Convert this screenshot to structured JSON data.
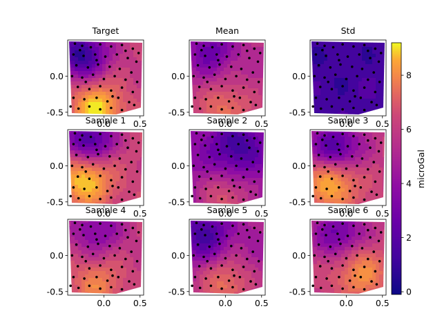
{
  "chart_data": {
    "type": "contour-grid",
    "colormap": "plasma",
    "colorbar": {
      "label": "microGal",
      "range": [
        -0.1,
        9.2
      ],
      "ticks": [
        0,
        2,
        4,
        6,
        8
      ]
    },
    "xlim": [
      -0.5,
      0.55
    ],
    "ylim": [
      -0.55,
      0.5
    ],
    "xticks": [
      0.0,
      0.5
    ],
    "yticks": [
      0.0,
      -0.5
    ],
    "points_marker": "black dots",
    "panels": [
      {
        "title": "Target",
        "field": {
          "low_center": [
            -0.3,
            0.3
          ],
          "high_center": [
            -0.1,
            -0.45
          ],
          "low": 0.5,
          "high": 9.0
        }
      },
      {
        "title": "Mean",
        "field": {
          "low_center": [
            -0.2,
            0.35
          ],
          "high_center": [
            0.0,
            -0.45
          ],
          "low": 2.0,
          "high": 6.5
        }
      },
      {
        "title": "Std",
        "field": {
          "low_center": [
            0.0,
            0.0
          ],
          "high_center": [
            0.1,
            -0.1
          ],
          "low": 0.6,
          "high": 1.4
        }
      },
      {
        "title": "Sample 1",
        "field": {
          "low_center": [
            -0.2,
            0.35
          ],
          "high_center": [
            -0.25,
            -0.2
          ],
          "low": 1.0,
          "high": 9.0
        }
      },
      {
        "title": "Sample 2",
        "field": {
          "low_center": [
            0.15,
            0.25
          ],
          "high_center": [
            0.0,
            -0.45
          ],
          "low": 0.8,
          "high": 5.5
        }
      },
      {
        "title": "Sample 3",
        "field": {
          "low_center": [
            -0.15,
            0.25
          ],
          "high_center": [
            -0.2,
            -0.25
          ],
          "low": 1.0,
          "high": 8.5
        }
      },
      {
        "title": "Sample 4",
        "field": {
          "low_center": [
            -0.1,
            0.35
          ],
          "high_center": [
            -0.1,
            -0.4
          ],
          "low": 2.5,
          "high": 7.0
        }
      },
      {
        "title": "Sample 5",
        "field": {
          "low_center": [
            -0.3,
            0.3
          ],
          "high_center": [
            0.0,
            -0.4
          ],
          "low": 1.0,
          "high": 6.5
        }
      },
      {
        "title": "Sample 6",
        "field": {
          "low_center": [
            -0.1,
            0.3
          ],
          "high_center": [
            0.2,
            -0.25
          ],
          "low": 2.0,
          "high": 7.5
        }
      }
    ],
    "points": [
      [
        -0.4,
        0.45
      ],
      [
        -0.3,
        0.42
      ],
      [
        -0.18,
        0.4
      ],
      [
        -0.05,
        0.44
      ],
      [
        0.1,
        0.41
      ],
      [
        0.25,
        0.43
      ],
      [
        0.4,
        0.38
      ],
      [
        -0.42,
        0.3
      ],
      [
        -0.28,
        0.28
      ],
      [
        -0.12,
        0.3
      ],
      [
        0.02,
        0.27
      ],
      [
        0.18,
        0.3
      ],
      [
        0.33,
        0.25
      ],
      [
        0.45,
        0.2
      ],
      [
        -0.38,
        0.15
      ],
      [
        -0.22,
        0.12
      ],
      [
        -0.08,
        0.16
      ],
      [
        0.08,
        0.13
      ],
      [
        0.22,
        0.1
      ],
      [
        0.38,
        0.05
      ],
      [
        -0.44,
        0.0
      ],
      [
        -0.3,
        -0.02
      ],
      [
        -0.15,
        0.02
      ],
      [
        0.0,
        -0.04
      ],
      [
        0.15,
        0.0
      ],
      [
        0.3,
        -0.05
      ],
      [
        0.46,
        -0.08
      ],
      [
        -0.36,
        -0.15
      ],
      [
        -0.2,
        -0.18
      ],
      [
        -0.05,
        -0.14
      ],
      [
        0.1,
        -0.2
      ],
      [
        0.25,
        -0.16
      ],
      [
        0.4,
        -0.22
      ],
      [
        -0.42,
        -0.3
      ],
      [
        -0.27,
        -0.32
      ],
      [
        -0.1,
        -0.3
      ],
      [
        0.05,
        -0.35
      ],
      [
        0.2,
        -0.3
      ],
      [
        0.35,
        -0.36
      ],
      [
        -0.35,
        -0.45
      ],
      [
        -0.2,
        -0.42
      ],
      [
        -0.05,
        -0.46
      ],
      [
        0.1,
        -0.44
      ],
      [
        0.25,
        -0.47
      ],
      [
        0.42,
        -0.4
      ],
      [
        -0.33,
        0.36
      ],
      [
        -0.1,
        0.22
      ],
      [
        0.3,
        0.35
      ],
      [
        -0.25,
        -0.08
      ],
      [
        0.12,
        -0.28
      ],
      [
        0.48,
        0.32
      ],
      [
        -0.46,
        -0.42
      ]
    ]
  }
}
